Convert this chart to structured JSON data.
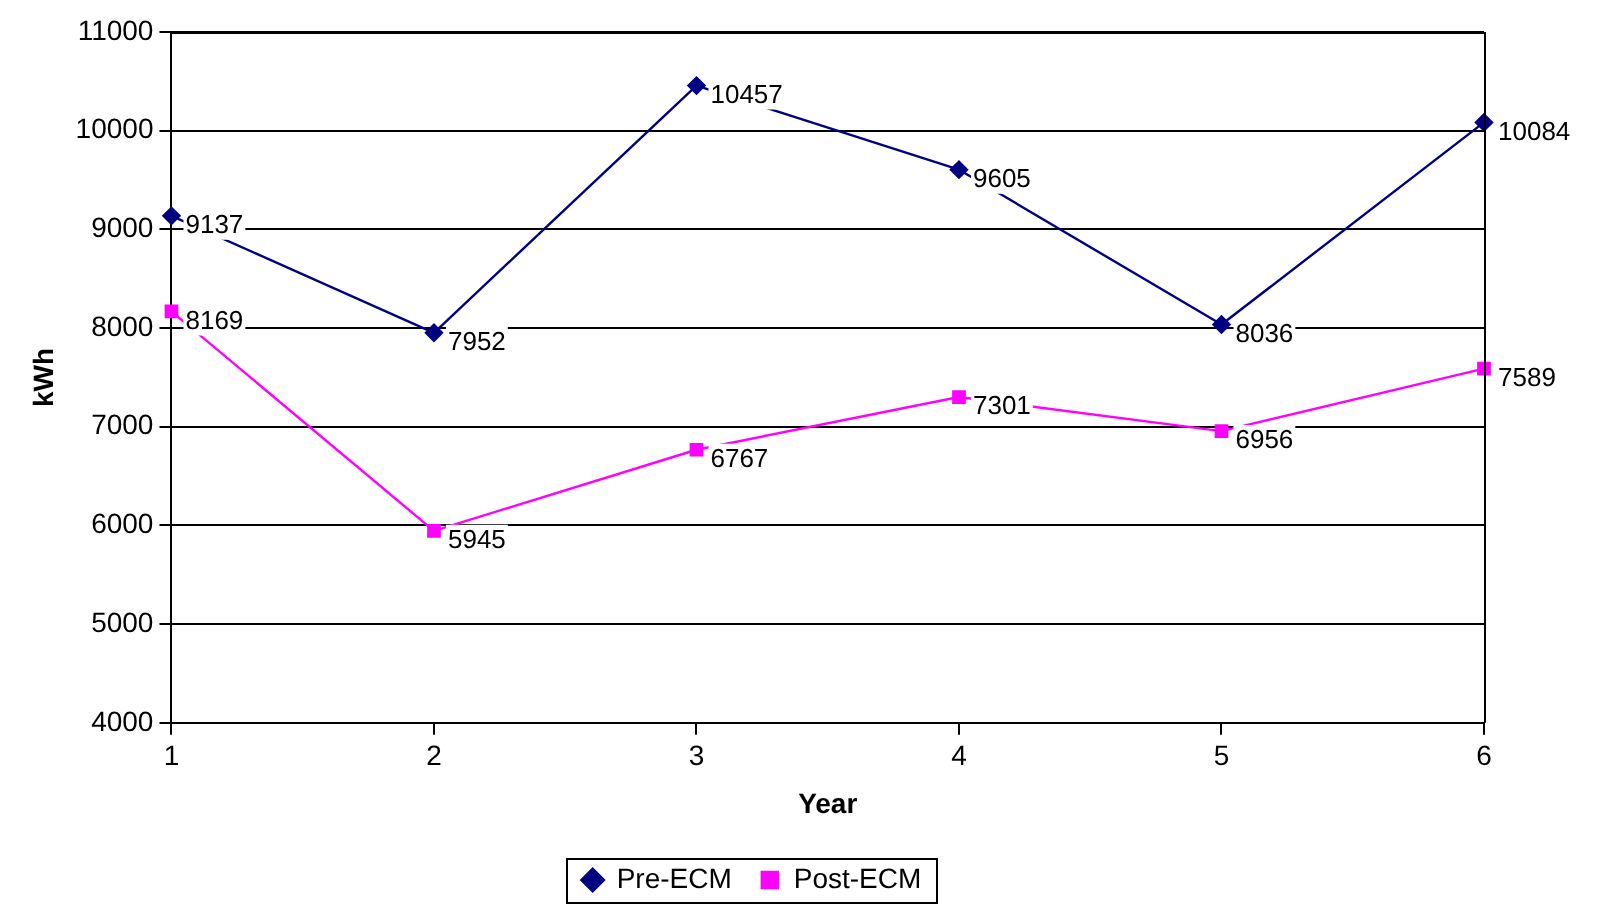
{
  "chart_data": {
    "type": "line",
    "xlabel": "Year",
    "ylabel": "kWh",
    "categories": [
      "1",
      "2",
      "3",
      "4",
      "5",
      "6"
    ],
    "series": [
      {
        "name": "Pre-ECM",
        "color": "#000080",
        "marker": "diamond",
        "values": [
          9137,
          7952,
          10457,
          9605,
          8036,
          10084
        ]
      },
      {
        "name": "Post-ECM",
        "color": "#ff00ff",
        "marker": "square",
        "values": [
          8169,
          5945,
          6767,
          7301,
          6956,
          7589
        ]
      }
    ],
    "ylim": [
      4000,
      11000
    ],
    "yticks": [
      4000,
      5000,
      6000,
      7000,
      8000,
      9000,
      10000,
      11000
    ],
    "grid": "y",
    "legend": "bottom",
    "data_labels": true,
    "line_style": "solid"
  }
}
